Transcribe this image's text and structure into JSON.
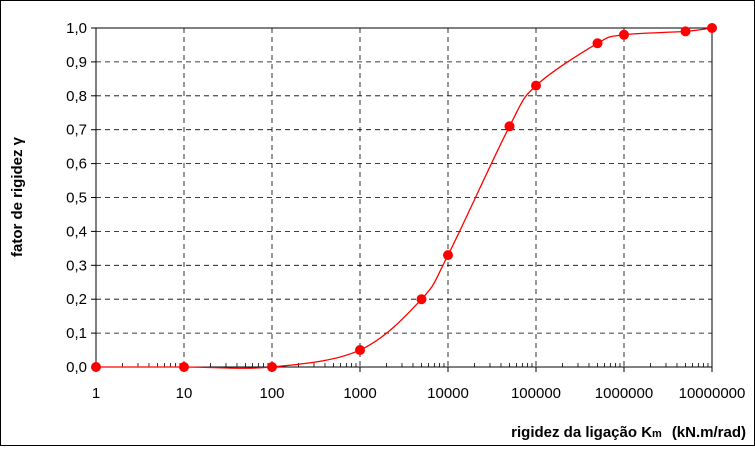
{
  "chart_data": {
    "type": "scatter",
    "xscale": "log",
    "xlim": [
      1,
      10000000
    ],
    "ylim": [
      0,
      1
    ],
    "grid": true,
    "xlabel": "rigidez da ligação K",
    "xlabel_sub": "m",
    "xlabel_unit": "(kN.m/rad)",
    "ylabel": "fator de rigidez ",
    "ylabel_symbol": "γ",
    "x_tick_labels": [
      "1",
      "10",
      "100",
      "1000",
      "10000",
      "100000",
      "1000000",
      "10000000"
    ],
    "y_tick_labels": [
      "0,0",
      "0,1",
      "0,2",
      "0,3",
      "0,4",
      "0,5",
      "0,6",
      "0,7",
      "0,8",
      "0,9",
      "1,0"
    ],
    "series": [
      {
        "color": "#ff0000",
        "marker": "circle",
        "line": "smooth",
        "x": [
          1,
          10,
          100,
          1000,
          5000,
          10000,
          50000,
          100000,
          500000,
          1000000,
          5000000,
          10000000
        ],
        "y": [
          0.0,
          0.0,
          0.0,
          0.05,
          0.2,
          0.33,
          0.71,
          0.83,
          0.955,
          0.98,
          0.99,
          1.0
        ]
      }
    ]
  }
}
